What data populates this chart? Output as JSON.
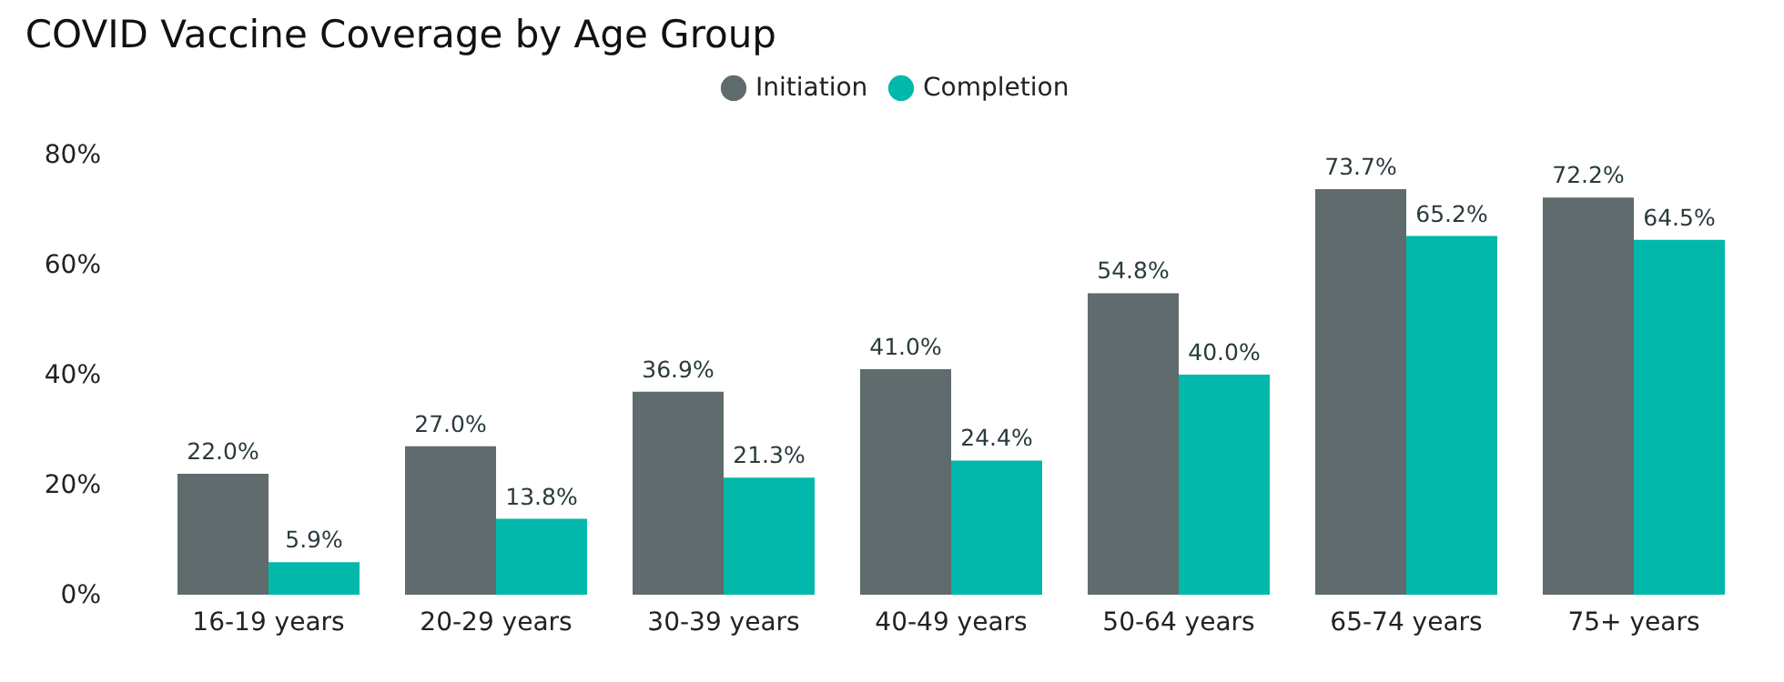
{
  "chart_data": {
    "type": "bar",
    "title": "COVID Vaccine Coverage by Age Group",
    "categories": [
      "16-19 years",
      "20-29 years",
      "30-39 years",
      "40-49 years",
      "50-64 years",
      "65-74 years",
      "75+ years"
    ],
    "series": [
      {
        "name": "Initiation",
        "color": "#5f6b6d",
        "values": [
          22.0,
          27.0,
          36.9,
          41.0,
          54.8,
          73.7,
          72.2
        ],
        "value_labels": [
          "22.0%",
          "27.0%",
          "36.9%",
          "41.0%",
          "54.8%",
          "73.7%",
          "72.2%"
        ]
      },
      {
        "name": "Completion",
        "color": "#01b8aa",
        "values": [
          5.9,
          13.8,
          21.3,
          24.4,
          40.0,
          65.2,
          64.5
        ],
        "value_labels": [
          "5.9%",
          "13.8%",
          "21.3%",
          "24.4%",
          "40.0%",
          "65.2%",
          "64.5%"
        ]
      }
    ],
    "ylim": [
      0,
      80
    ],
    "yticks": [
      {
        "value": 0,
        "label": "0%"
      },
      {
        "value": 20,
        "label": "20%"
      },
      {
        "value": 40,
        "label": "40%"
      },
      {
        "value": 60,
        "label": "60%"
      },
      {
        "value": 80,
        "label": "80%"
      }
    ],
    "grid": false,
    "legend": "top"
  }
}
